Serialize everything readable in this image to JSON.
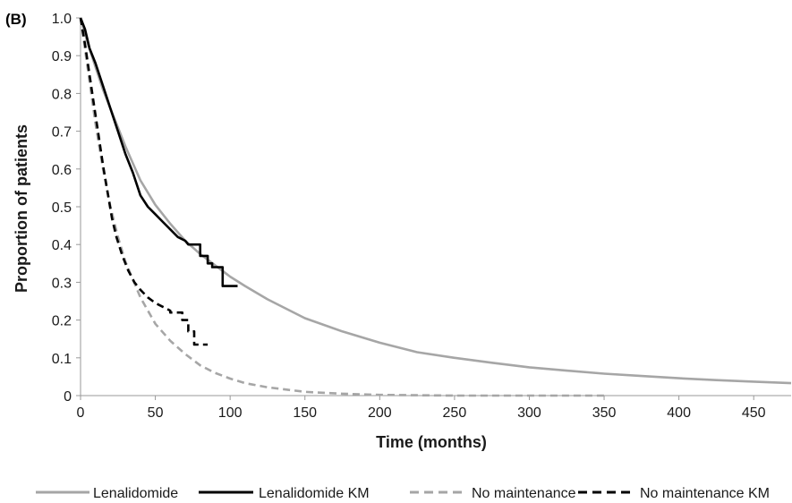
{
  "panel_label": "(B)",
  "chart_data": {
    "type": "line",
    "xlabel": "Time (months)",
    "ylabel": "Proportion of patients",
    "xlim": [
      0,
      475
    ],
    "ylim": [
      0,
      1.0
    ],
    "x_ticks": [
      0,
      50,
      100,
      150,
      200,
      250,
      300,
      350,
      400,
      450
    ],
    "y_ticks": [
      0,
      0.1,
      0.2,
      0.3,
      0.4,
      0.5,
      0.6,
      0.7,
      0.8,
      0.9,
      1.0
    ],
    "y_tick_labels": [
      "0",
      "0.1",
      "0.2",
      "0.3",
      "0.4",
      "0.5",
      "0.6",
      "0.7",
      "0.8",
      "0.9",
      "1.0"
    ],
    "grid": false,
    "legend_position": "bottom",
    "colors": {
      "lenalidomide": "#a6a6a6",
      "lenalidomide_km": "#000000",
      "no_maintenance": "#a6a6a6",
      "no_maintenance_km": "#000000"
    },
    "series": [
      {
        "name": "Lenalidomide",
        "style": "solid",
        "color": "#a6a6a6",
        "x": [
          0,
          5,
          10,
          15,
          20,
          25,
          30,
          40,
          50,
          60,
          70,
          80,
          90,
          100,
          110,
          125,
          150,
          175,
          200,
          225,
          250,
          275,
          300,
          325,
          350,
          375,
          400,
          425,
          450,
          475
        ],
        "y": [
          1.0,
          0.93,
          0.87,
          0.81,
          0.76,
          0.71,
          0.66,
          0.57,
          0.505,
          0.455,
          0.41,
          0.375,
          0.345,
          0.315,
          0.29,
          0.255,
          0.205,
          0.17,
          0.14,
          0.115,
          0.1,
          0.087,
          0.075,
          0.066,
          0.058,
          0.052,
          0.046,
          0.041,
          0.037,
          0.033
        ]
      },
      {
        "name": "Lenalidomide KM",
        "style": "solid",
        "color": "#000000",
        "x": [
          0,
          3,
          6,
          10,
          15,
          20,
          25,
          30,
          35,
          40,
          45,
          50,
          55,
          60,
          65,
          70,
          72,
          80,
          80,
          85,
          85,
          88,
          88,
          95,
          95,
          105
        ],
        "y": [
          1.0,
          0.97,
          0.92,
          0.88,
          0.82,
          0.76,
          0.7,
          0.64,
          0.59,
          0.53,
          0.5,
          0.48,
          0.46,
          0.44,
          0.42,
          0.41,
          0.4,
          0.4,
          0.37,
          0.37,
          0.35,
          0.35,
          0.34,
          0.34,
          0.29,
          0.29
        ]
      },
      {
        "name": "No maintenance",
        "style": "dashed",
        "color": "#a6a6a6",
        "x": [
          0,
          5,
          10,
          15,
          20,
          25,
          30,
          40,
          50,
          60,
          70,
          80,
          90,
          100,
          110,
          125,
          150,
          175,
          200,
          225,
          250,
          275,
          300,
          325,
          350
        ],
        "y": [
          1.0,
          0.86,
          0.72,
          0.6,
          0.5,
          0.42,
          0.355,
          0.26,
          0.19,
          0.145,
          0.11,
          0.08,
          0.06,
          0.045,
          0.033,
          0.022,
          0.01,
          0.005,
          0.002,
          0.001,
          0.0,
          0.0,
          0.0,
          0.0,
          0.0
        ]
      },
      {
        "name": "No maintenance KM",
        "style": "dashed",
        "color": "#000000",
        "x": [
          0,
          3,
          6,
          9,
          12,
          15,
          18,
          21,
          24,
          28,
          32,
          36,
          40,
          45,
          50,
          55,
          60,
          60,
          68,
          68,
          72,
          72,
          76,
          76,
          85
        ],
        "y": [
          1.0,
          0.93,
          0.85,
          0.77,
          0.69,
          0.61,
          0.54,
          0.47,
          0.42,
          0.37,
          0.33,
          0.3,
          0.28,
          0.26,
          0.245,
          0.235,
          0.225,
          0.22,
          0.22,
          0.2,
          0.2,
          0.17,
          0.17,
          0.135,
          0.135
        ]
      }
    ]
  }
}
